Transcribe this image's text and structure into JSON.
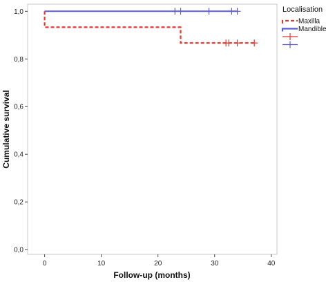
{
  "chart_data": {
    "type": "line",
    "subtype": "kaplan-meier-step",
    "xlabel": "Follow-up (months)",
    "ylabel": "Cumulative survival",
    "xlim": [
      -3,
      41
    ],
    "ylim": [
      -0.02,
      1.03
    ],
    "x_ticks": [
      0,
      10,
      20,
      30,
      40
    ],
    "x_tick_labels": [
      "0",
      "10",
      "20",
      "30",
      "40"
    ],
    "y_ticks": [
      0.0,
      0.2,
      0.4,
      0.6,
      0.8,
      1.0
    ],
    "y_tick_labels": [
      "0,0",
      "0,2",
      "0,4",
      "0,6",
      "0,8",
      "1,0"
    ],
    "grid": false,
    "legend": {
      "title": "Localisation",
      "placement": "right",
      "items": [
        "Maxilla",
        "Mandible",
        "",
        ""
      ]
    },
    "series": [
      {
        "name": "Maxilla",
        "color": "#e8332a",
        "dashed": true,
        "steps": [
          [
            0,
            1.0
          ],
          [
            0,
            0.933
          ],
          [
            24,
            0.933
          ],
          [
            24,
            0.867
          ],
          [
            37,
            0.867
          ]
        ],
        "censored": [
          [
            32,
            0.867
          ],
          [
            32.5,
            0.867
          ],
          [
            34,
            0.867
          ],
          [
            37,
            0.867
          ]
        ]
      },
      {
        "name": "Mandible",
        "color": "#5b5bd8",
        "dashed": false,
        "steps": [
          [
            0,
            1.0
          ],
          [
            34,
            1.0
          ]
        ],
        "censored": [
          [
            23,
            1.0
          ],
          [
            24,
            1.0
          ],
          [
            29,
            1.0
          ],
          [
            33,
            1.0
          ],
          [
            34,
            1.0
          ]
        ]
      }
    ]
  }
}
